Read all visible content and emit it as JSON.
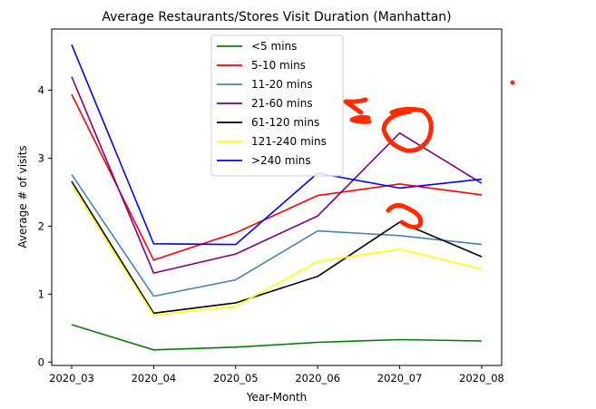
{
  "chart_data": {
    "type": "line",
    "title": "Average Restaurants/Stores Visit Duration (Manhattan)",
    "xlabel": "Year-Month",
    "ylabel": "Average # of visits",
    "categories": [
      "2020_03",
      "2020_04",
      "2020_05",
      "2020_06",
      "2020_07",
      "2020_08"
    ],
    "ylim": [
      -0.05,
      4.9
    ],
    "yticks": [
      0,
      1,
      2,
      3,
      4
    ],
    "grid": false,
    "legend_position": "top-center",
    "series": [
      {
        "name": "<5 mins",
        "color": "#008000",
        "values": [
          0.55,
          0.18,
          0.22,
          0.29,
          0.33,
          0.31
        ]
      },
      {
        "name": "5-10 mins",
        "color": "#ff0000",
        "values": [
          3.94,
          1.5,
          1.9,
          2.45,
          2.62,
          2.46
        ]
      },
      {
        "name": "11-20 mins",
        "color": "#4682b4",
        "values": [
          2.76,
          0.97,
          1.21,
          1.93,
          1.86,
          1.73
        ]
      },
      {
        "name": "21-60 mins",
        "color": "#800080",
        "values": [
          4.2,
          1.31,
          1.59,
          2.15,
          3.37,
          2.63
        ]
      },
      {
        "name": "61-120 mins",
        "color": "#000000",
        "values": [
          2.66,
          0.72,
          0.87,
          1.26,
          2.06,
          1.55
        ]
      },
      {
        "name": "121-240 mins",
        "color": "#ffff00",
        "values": [
          2.6,
          0.69,
          0.82,
          1.48,
          1.66,
          1.37
        ]
      },
      {
        "name": ">240 mins",
        "color": "#0000ff",
        "values": [
          4.67,
          1.74,
          1.73,
          2.78,
          2.56,
          2.69
        ]
      }
    ],
    "annotations": {
      "color": "#ff2a00",
      "description": "hand-drawn red marker strokes: arrows pointing left near legend, circles around 2020_07 peaks"
    }
  }
}
